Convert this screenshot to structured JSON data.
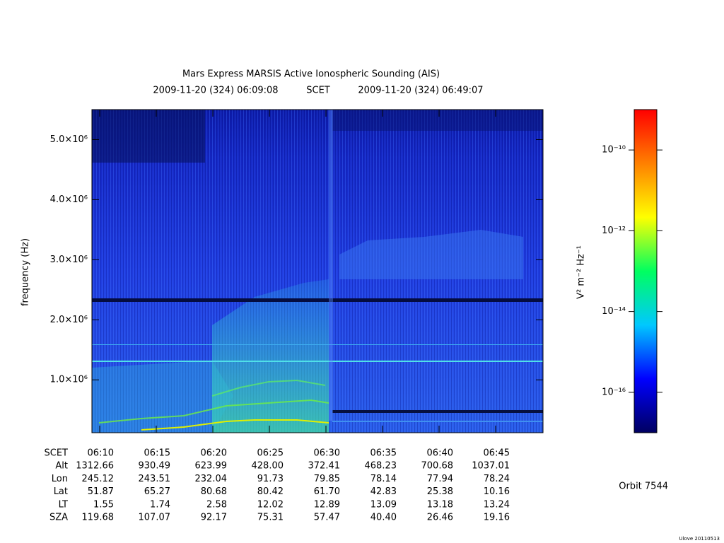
{
  "chart_data": {
    "type": "spectrogram",
    "title": "Mars Express MARSIS Active Ionospheric Sounding (AIS)",
    "scet_start": "2009-11-20 (324) 06:09:08",
    "scet_label": "SCET",
    "scet_end": "2009-11-20 (324) 06:49:07",
    "ylabel": "frequency (Hz)",
    "ylim": [
      120000,
      5500000
    ],
    "yticks": [
      {
        "value": 1000000,
        "label": "1.0×10⁶"
      },
      {
        "value": 2000000,
        "label": "2.0×10⁶"
      },
      {
        "value": 3000000,
        "label": "3.0×10⁶"
      },
      {
        "value": 4000000,
        "label": "4.0×10⁶"
      },
      {
        "value": 5000000,
        "label": "5.0×10⁶"
      }
    ],
    "ephemeris": {
      "rows": [
        {
          "label": "SCET",
          "values": [
            "06:10",
            "06:15",
            "06:20",
            "06:25",
            "06:30",
            "06:35",
            "06:40",
            "06:45"
          ]
        },
        {
          "label": "Alt",
          "values": [
            "1312.66",
            "930.49",
            "623.99",
            "428.00",
            "372.41",
            "468.23",
            "700.68",
            "1037.01"
          ]
        },
        {
          "label": "Lon",
          "values": [
            "245.12",
            "243.51",
            "232.04",
            "91.73",
            "79.85",
            "78.14",
            "77.94",
            "78.24"
          ]
        },
        {
          "label": "Lat",
          "values": [
            "51.87",
            "65.27",
            "80.68",
            "80.42",
            "61.70",
            "42.83",
            "25.38",
            "10.16"
          ]
        },
        {
          "label": "LT",
          "values": [
            "1.55",
            "1.74",
            "2.58",
            "12.02",
            "12.89",
            "13.09",
            "13.18",
            "13.24"
          ]
        },
        {
          "label": "SZA",
          "values": [
            "119.68",
            "107.07",
            "92.17",
            "75.31",
            "57.47",
            "40.40",
            "26.46",
            "19.16"
          ]
        }
      ]
    },
    "colorbar": {
      "label": "V² m⁻² Hz⁻¹",
      "log": true,
      "lim": [
        1e-17,
        1e-09
      ],
      "ticks": [
        {
          "value": 1e-10,
          "label": "10⁻¹⁰"
        },
        {
          "value": 1e-12,
          "label": "10⁻¹²"
        },
        {
          "value": 1e-14,
          "label": "10⁻¹⁴"
        },
        {
          "value": 1e-16,
          "label": "10⁻¹⁶"
        }
      ],
      "colors": [
        "#000060",
        "#0000ff",
        "#00c8ff",
        "#00ff60",
        "#ffff00",
        "#ff8000",
        "#ff0000"
      ]
    },
    "orbit": "Orbit 7544",
    "credit": "Ulove 20110513"
  }
}
